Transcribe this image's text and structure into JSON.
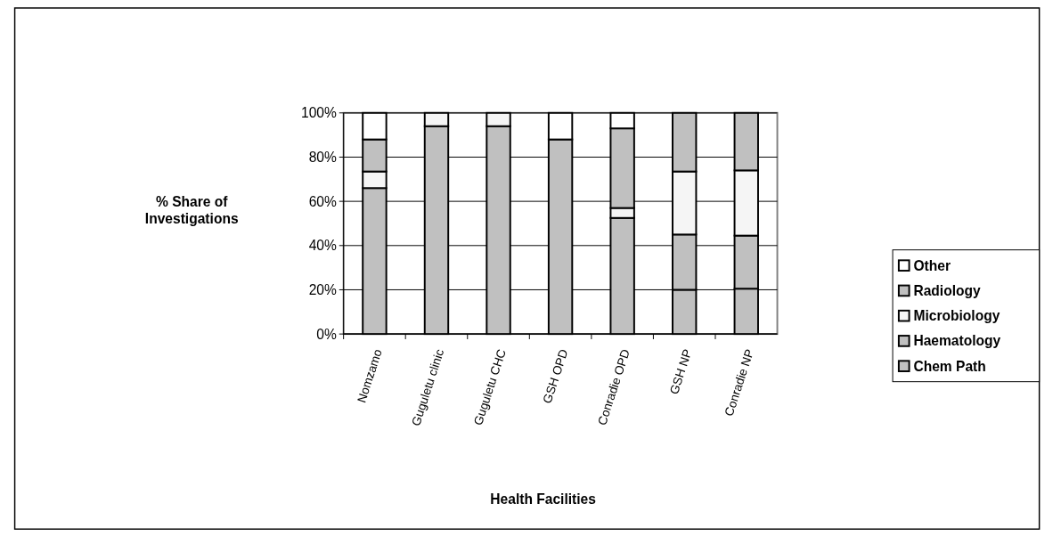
{
  "chart_data": {
    "type": "bar",
    "stacked": true,
    "xlabel": "Health Facilities",
    "ylabel": "% Share of Investigations",
    "categories": [
      "Nomzamo",
      "Guguletu clinic",
      "Guguletu CHC",
      "GSH OPD",
      "Conradie OPD",
      "GSH NP",
      "Conradie NP"
    ],
    "series": [
      {
        "name": "Chem Path",
        "color": "#c0c0c0",
        "values": [
          66,
          94,
          94,
          88,
          52.5,
          20,
          20.5
        ]
      },
      {
        "name": "Haematology",
        "color": "#c0c0c0",
        "values": [
          0,
          0,
          0,
          0,
          0,
          25,
          24
        ]
      },
      {
        "name": "Microbiology",
        "color": "#f5f5f5",
        "values": [
          7.5,
          6,
          6,
          null,
          4.5,
          28.5,
          29.5
        ]
      },
      {
        "name": "Radiology",
        "color": "#c0c0c0",
        "values": [
          14.5,
          0,
          0,
          0,
          36,
          26.5,
          26
        ]
      },
      {
        "name": "Other",
        "color": "#ffffff",
        "values": [
          12,
          0,
          0,
          12,
          7,
          0,
          0
        ]
      }
    ],
    "ylim": [
      0,
      100
    ],
    "yticks": [
      {
        "value": 0,
        "label": "0%"
      },
      {
        "value": 20,
        "label": "20%"
      },
      {
        "value": 40,
        "label": "40%"
      },
      {
        "value": 60,
        "label": "60%"
      },
      {
        "value": 80,
        "label": "80%"
      },
      {
        "value": 100,
        "label": "100%"
      }
    ],
    "grid": true,
    "legend": "right"
  }
}
